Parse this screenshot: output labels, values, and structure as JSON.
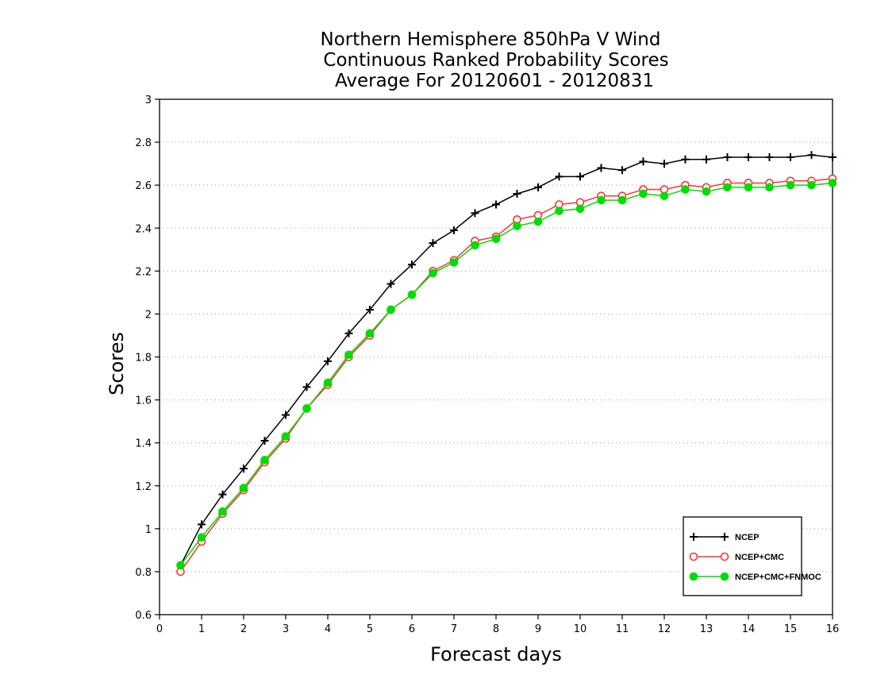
{
  "chart_data": {
    "type": "line",
    "title_lines": [
      "Northern Hemisphere 850hPa V Wind",
      "Continuous Ranked Probability Scores",
      "Average For 20120601 - 20120831"
    ],
    "xlabel": "Forecast days",
    "ylabel": "Scores",
    "xlim": [
      0,
      16
    ],
    "ylim": [
      0.6,
      3
    ],
    "x_ticks": [
      "0",
      "1",
      "2",
      "3",
      "4",
      "5",
      "6",
      "7",
      "8",
      "9",
      "10",
      "11",
      "12",
      "13",
      "14",
      "15",
      "16"
    ],
    "y_ticks": [
      "0.6",
      "0.8",
      "1",
      "1.2",
      "1.4",
      "1.6",
      "1.8",
      "2",
      "2.2",
      "2.4",
      "2.6",
      "2.8",
      "3"
    ],
    "grid": "horizontal dotted",
    "legend_position": "bottom-right",
    "x": [
      0.5,
      1,
      1.5,
      2,
      2.5,
      3,
      3.5,
      4,
      4.5,
      5,
      5.5,
      6,
      6.5,
      7,
      7.5,
      8,
      8.5,
      9,
      9.5,
      10,
      10.5,
      11,
      11.5,
      12,
      12.5,
      13,
      13.5,
      14,
      14.5,
      15,
      15.5,
      16
    ],
    "series": [
      {
        "name": "NCEP",
        "color": "#000000",
        "marker": "plus",
        "values": [
          0.83,
          1.02,
          1.16,
          1.28,
          1.41,
          1.53,
          1.66,
          1.78,
          1.91,
          2.02,
          2.14,
          2.23,
          2.33,
          2.39,
          2.47,
          2.51,
          2.56,
          2.59,
          2.64,
          2.64,
          2.68,
          2.67,
          2.71,
          2.7,
          2.72,
          2.72,
          2.73,
          2.73,
          2.73,
          2.73,
          2.74,
          2.73
        ]
      },
      {
        "name": "NCEP+CMC",
        "color": "#ff3333",
        "marker": "open-circle",
        "values": [
          0.8,
          0.94,
          1.07,
          1.18,
          1.31,
          1.42,
          1.56,
          1.67,
          1.8,
          1.9,
          2.02,
          2.09,
          2.2,
          2.25,
          2.34,
          2.36,
          2.44,
          2.46,
          2.51,
          2.52,
          2.55,
          2.55,
          2.58,
          2.58,
          2.6,
          2.59,
          2.61,
          2.61,
          2.61,
          2.62,
          2.62,
          2.63
        ]
      },
      {
        "name": "NCEP+CMC+FNMOC",
        "color": "#00dd00",
        "marker": "filled-circle",
        "values": [
          0.83,
          0.96,
          1.08,
          1.19,
          1.32,
          1.43,
          1.56,
          1.68,
          1.81,
          1.91,
          2.02,
          2.09,
          2.19,
          2.24,
          2.32,
          2.35,
          2.41,
          2.43,
          2.48,
          2.49,
          2.53,
          2.53,
          2.56,
          2.55,
          2.58,
          2.57,
          2.59,
          2.59,
          2.59,
          2.6,
          2.6,
          2.61
        ]
      }
    ]
  }
}
